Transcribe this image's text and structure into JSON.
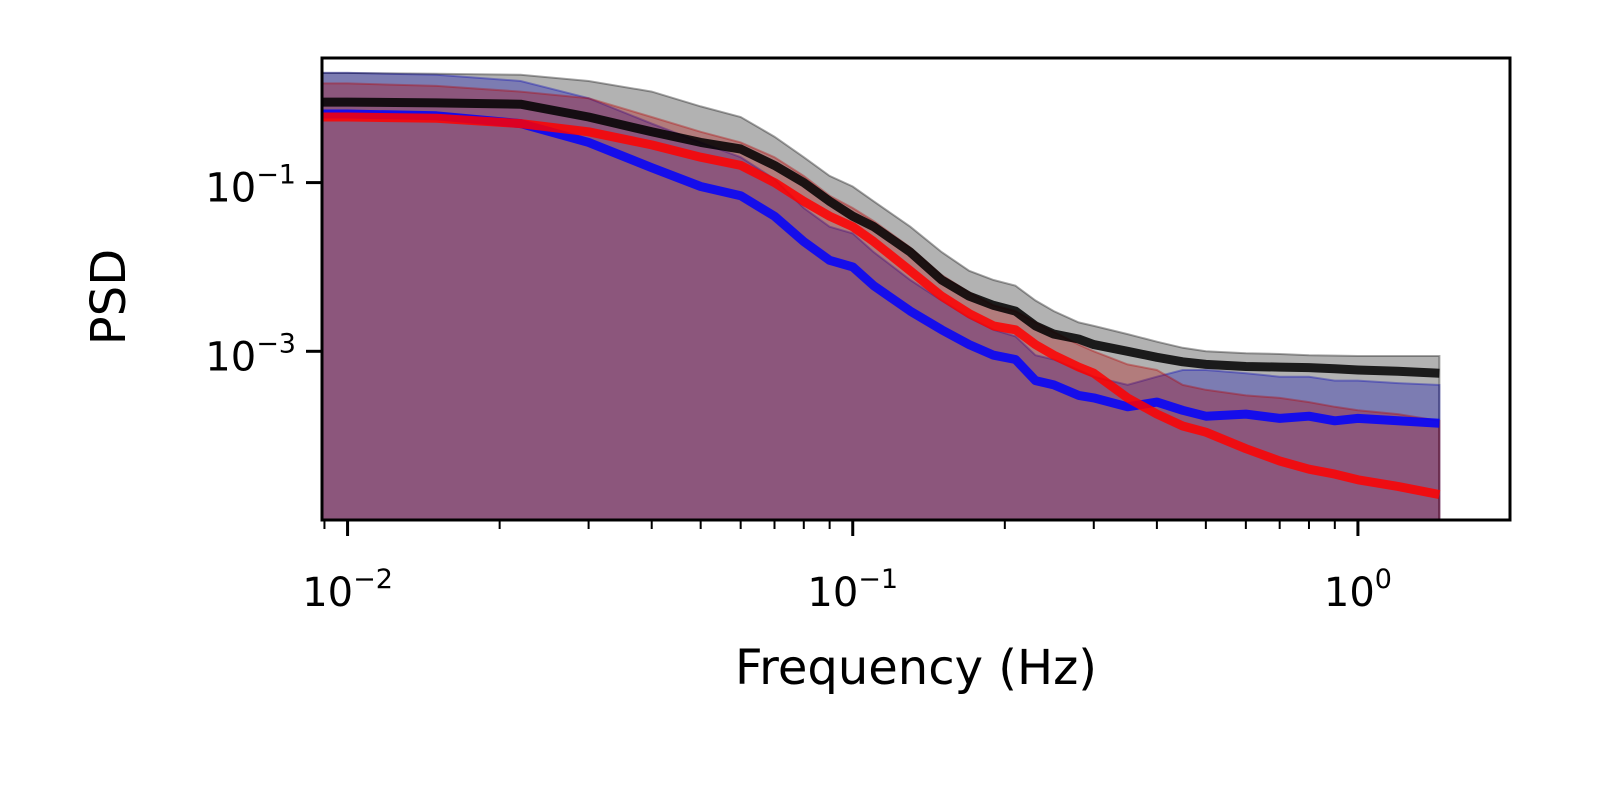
{
  "chart_data": {
    "type": "line",
    "title": "",
    "xlabel": "Frequency (Hz)",
    "ylabel": "PSD",
    "xscale": "log",
    "yscale": "log",
    "xlim": [
      0.0089,
      2.0
    ],
    "ylim": [
      1e-05,
      3.0
    ],
    "grid": false,
    "legend": "none",
    "x_ticks": [
      {
        "value": 0.01,
        "base": "10",
        "exp": "−2"
      },
      {
        "value": 0.1,
        "base": "10",
        "exp": "−1"
      },
      {
        "value": 1.0,
        "base": "10",
        "exp": "0"
      }
    ],
    "y_ticks": [
      {
        "value": 0.1,
        "base": "10",
        "exp": "−1"
      },
      {
        "value": 0.001,
        "base": "10",
        "exp": "−3"
      }
    ],
    "series": [
      {
        "color": "#0000ff",
        "x": [
          0.0089,
          0.01,
          0.015,
          0.022,
          0.03,
          0.04,
          0.05,
          0.06,
          0.07,
          0.08,
          0.09,
          0.1,
          0.11,
          0.13,
          0.15,
          0.17,
          0.19,
          0.21,
          0.23,
          0.25,
          0.28,
          0.3,
          0.35,
          0.4,
          0.45,
          0.5,
          0.6,
          0.7,
          0.8,
          0.9,
          1.0,
          1.2,
          1.45
        ],
        "y": [
          0.65,
          0.65,
          0.62,
          0.5,
          0.3,
          0.15,
          0.09,
          0.07,
          0.04,
          0.02,
          0.012,
          0.01,
          0.006,
          0.003,
          0.0018,
          0.0012,
          0.0009,
          0.0008,
          0.00045,
          0.0004,
          0.0003,
          0.00028,
          0.00022,
          0.00025,
          0.0002,
          0.00017,
          0.00018,
          0.00016,
          0.00017,
          0.00015,
          0.00016,
          0.00015,
          0.00014
        ],
        "band_upper": [
          2.0,
          2.0,
          1.9,
          1.6,
          1.0,
          0.5,
          0.3,
          0.2,
          0.11,
          0.05,
          0.03,
          0.025,
          0.015,
          0.007,
          0.004,
          0.0025,
          0.0018,
          0.0015,
          0.0009,
          0.0008,
          0.0006,
          0.0005,
          0.0004,
          0.0005,
          0.0006,
          0.0006,
          0.00055,
          0.0005,
          0.0005,
          0.00045,
          0.00045,
          0.00042,
          0.0004
        ],
        "band_lower": [
          1e-05,
          1e-05,
          1e-05,
          1e-05,
          1e-05,
          1e-05,
          1e-05,
          1e-05,
          1e-05,
          1e-05,
          1e-05,
          1e-05,
          1e-05,
          1e-05,
          1e-05,
          1e-05,
          1e-05,
          1e-05,
          1e-05,
          1e-05,
          1e-05,
          1e-05,
          1e-05,
          1e-05,
          1e-05,
          1e-05,
          1e-05,
          1e-05,
          1e-05,
          1e-05,
          1e-05,
          1e-05,
          1e-05
        ]
      },
      {
        "color": "#ff0000",
        "x": [
          0.0089,
          0.01,
          0.015,
          0.022,
          0.03,
          0.04,
          0.05,
          0.06,
          0.07,
          0.08,
          0.09,
          0.1,
          0.11,
          0.13,
          0.15,
          0.17,
          0.19,
          0.21,
          0.23,
          0.25,
          0.28,
          0.3,
          0.35,
          0.4,
          0.45,
          0.5,
          0.6,
          0.7,
          0.8,
          0.9,
          1.0,
          1.2,
          1.45
        ],
        "y": [
          0.6,
          0.6,
          0.58,
          0.5,
          0.4,
          0.28,
          0.2,
          0.16,
          0.1,
          0.06,
          0.04,
          0.03,
          0.02,
          0.009,
          0.0045,
          0.0028,
          0.002,
          0.0018,
          0.0012,
          0.0009,
          0.00065,
          0.00055,
          0.00028,
          0.00018,
          0.00013,
          0.00011,
          7e-05,
          5e-05,
          4e-05,
          3.5e-05,
          3e-05,
          2.5e-05,
          2e-05
        ],
        "band_upper": [
          1.5,
          1.5,
          1.4,
          1.2,
          1.0,
          0.6,
          0.4,
          0.3,
          0.2,
          0.12,
          0.07,
          0.05,
          0.035,
          0.017,
          0.008,
          0.005,
          0.0035,
          0.003,
          0.0022,
          0.0017,
          0.0012,
          0.001,
          0.0007,
          0.0006,
          0.0004,
          0.00035,
          0.0003,
          0.00028,
          0.00025,
          0.00022,
          0.0002,
          0.00018,
          0.00015
        ],
        "band_lower": [
          1e-05,
          1e-05,
          1e-05,
          1e-05,
          1e-05,
          1e-05,
          1e-05,
          1e-05,
          1e-05,
          1e-05,
          1e-05,
          1e-05,
          1e-05,
          1e-05,
          1e-05,
          1e-05,
          1e-05,
          1e-05,
          1e-05,
          1e-05,
          1e-05,
          1e-05,
          1e-05,
          1e-05,
          1e-05,
          1e-05,
          1e-05,
          1e-05,
          1e-05,
          1e-05,
          1e-05,
          1e-05,
          1e-05
        ]
      },
      {
        "color": "#000000",
        "x": [
          0.0089,
          0.01,
          0.015,
          0.022,
          0.03,
          0.04,
          0.05,
          0.06,
          0.07,
          0.08,
          0.09,
          0.1,
          0.11,
          0.13,
          0.15,
          0.17,
          0.19,
          0.21,
          0.23,
          0.25,
          0.28,
          0.3,
          0.35,
          0.4,
          0.45,
          0.5,
          0.6,
          0.7,
          0.8,
          0.9,
          1.0,
          1.2,
          1.45
        ],
        "y": [
          0.9,
          0.9,
          0.88,
          0.85,
          0.6,
          0.4,
          0.3,
          0.25,
          0.16,
          0.1,
          0.06,
          0.04,
          0.03,
          0.015,
          0.007,
          0.0045,
          0.0035,
          0.003,
          0.002,
          0.0016,
          0.0014,
          0.0012,
          0.001,
          0.00085,
          0.00075,
          0.0007,
          0.00066,
          0.00065,
          0.00064,
          0.00062,
          0.0006,
          0.00058,
          0.00055
        ],
        "band_upper": [
          2.0,
          2.0,
          1.95,
          1.9,
          1.6,
          1.2,
          0.8,
          0.6,
          0.35,
          0.2,
          0.12,
          0.09,
          0.06,
          0.03,
          0.015,
          0.009,
          0.007,
          0.006,
          0.004,
          0.003,
          0.0022,
          0.002,
          0.0016,
          0.0013,
          0.0011,
          0.001,
          0.00095,
          0.00093,
          0.0009,
          0.00089,
          0.00088,
          0.00088,
          0.00088
        ],
        "band_lower": [
          1e-05,
          1e-05,
          1e-05,
          1e-05,
          1e-05,
          1e-05,
          1e-05,
          1e-05,
          1e-05,
          1e-05,
          1e-05,
          1e-05,
          1e-05,
          1e-05,
          1e-05,
          1e-05,
          1e-05,
          1e-05,
          1e-05,
          1e-05,
          1e-05,
          1e-05,
          1e-05,
          1e-05,
          1e-05,
          1e-05,
          1e-05,
          1e-05,
          1e-05,
          1e-05,
          1e-05,
          1e-05,
          1e-05
        ]
      }
    ]
  }
}
